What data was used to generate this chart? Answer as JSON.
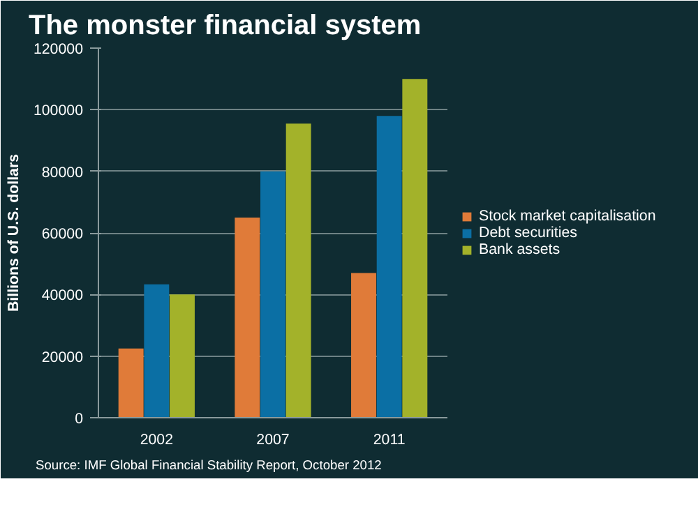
{
  "chart_data": {
    "type": "bar",
    "title": "The monster financial system",
    "ylabel": "Billions of U.S. dollars",
    "categories": [
      "2002",
      "2007",
      "2011"
    ],
    "series": [
      {
        "name": "Stock market capitalisation",
        "color": "#e07b39",
        "values": [
          22500,
          65000,
          47000
        ]
      },
      {
        "name": "Debt securities",
        "color": "#0b6fa4",
        "values": [
          43300,
          80000,
          98000
        ]
      },
      {
        "name": "Bank assets",
        "color": "#a3b22a",
        "values": [
          40000,
          95500,
          110000
        ]
      }
    ],
    "ylim": [
      0,
      120000
    ],
    "yticks": [
      0,
      20000,
      40000,
      60000,
      80000,
      100000,
      120000
    ],
    "grid": "y",
    "legend": "right",
    "annotations": [
      "Source: IMF Global Financial Stability Report, October 2012"
    ]
  }
}
